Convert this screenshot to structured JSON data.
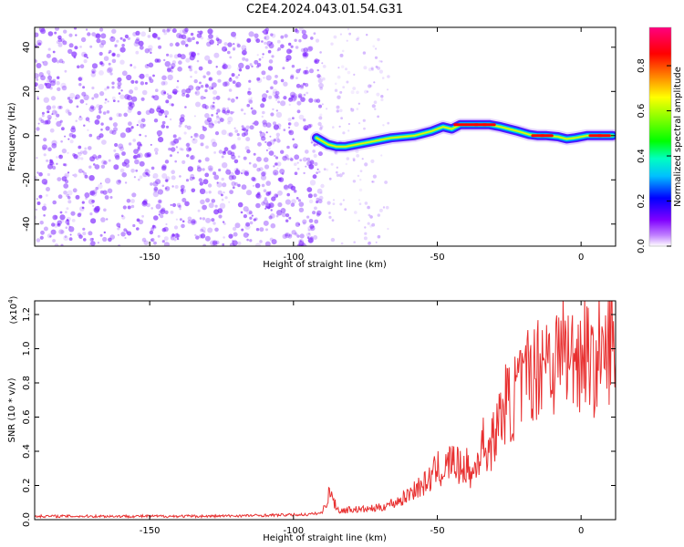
{
  "figure_title": "C2E4.2024.043.01.54.G31",
  "colors": {
    "spectrum_ridge": "#ff0000",
    "scatter_violet": "#7a1fff",
    "snr_line": "#e83030",
    "colorbar": [
      "#ff00ff",
      "#ff0080",
      "#ff0000",
      "#ff8000",
      "#ffff00",
      "#80ff00",
      "#00ff00",
      "#00ffc0",
      "#00c0ff",
      "#0000ff",
      "#8000ff",
      "#ffffff"
    ]
  },
  "chart_data": [
    {
      "type": "heatmap",
      "title": "",
      "xlabel": "Height of straight line (km)",
      "ylabel": "Frequency (Hz)",
      "xlim": [
        -190,
        12
      ],
      "ylim": [
        -50,
        49
      ],
      "x_ticks": [
        -150,
        -100,
        -50,
        0
      ],
      "y_ticks": [
        -40,
        -20,
        0,
        20,
        40
      ],
      "colorbar": {
        "label": "Normalized spectral amplitude",
        "range": [
          0,
          0.97
        ],
        "ticks": [
          "0.0",
          "0.2",
          "0.4",
          "0.6",
          "0.8"
        ]
      },
      "ridge": {
        "description": "narrow-band signal trace",
        "x": [
          -92,
          -88,
          -85,
          -82,
          -78,
          -74,
          -70,
          -66,
          -62,
          -58,
          -55,
          -52,
          -48,
          -45,
          -42,
          -38,
          -35,
          -32,
          -28,
          -25,
          -22,
          -18,
          -15,
          -12,
          -8,
          -5,
          -2,
          2,
          5,
          8,
          11
        ],
        "y": [
          -1,
          -4,
          -5,
          -5,
          -4,
          -3,
          -2,
          -1,
          -0.5,
          0,
          1,
          2,
          4,
          3,
          5,
          5,
          5,
          5,
          4,
          3,
          2,
          0.5,
          0,
          0,
          -0.5,
          -1.5,
          -1,
          0,
          0,
          0,
          0
        ],
        "amplitude": [
          0.35,
          0.45,
          0.5,
          0.55,
          0.6,
          0.65,
          0.7,
          0.7,
          0.72,
          0.75,
          0.75,
          0.8,
          0.8,
          0.85,
          0.9,
          0.97,
          0.97,
          0.95,
          0.85,
          0.8,
          0.75,
          0.8,
          0.9,
          0.92,
          0.8,
          0.75,
          0.8,
          0.85,
          0.9,
          0.92,
          0.85
        ]
      }
    },
    {
      "type": "line",
      "title": "",
      "xlabel": "Height of straight line (km)",
      "ylabel": "SNR (10 * v/v)",
      "y_multiplier": "(x10",
      "y_multiplier_exp": "4",
      "xlim": [
        -190,
        12
      ],
      "ylim": [
        0,
        1.28
      ],
      "x_ticks": [
        -150,
        -100,
        -50,
        0
      ],
      "y_ticks": [
        "0.0",
        "0.2",
        "0.4",
        "0.6",
        "0.8",
        "1.0",
        "1.2"
      ],
      "series": [
        {
          "x": [
            -190,
            -170,
            -150,
            -130,
            -110,
            -95,
            -90,
            -87,
            -86,
            -84,
            -80,
            -75,
            -70,
            -65,
            -62,
            -60,
            -58,
            -55,
            -52,
            -50,
            -48,
            -45,
            -42,
            -40,
            -38,
            -36,
            -34,
            -32,
            -30,
            -28,
            -26,
            -24,
            -22,
            -20,
            -18,
            -16,
            -14,
            -12,
            -10,
            -8,
            -6,
            -4,
            -2,
            0,
            2,
            4,
            6,
            8,
            10,
            12
          ],
          "y": [
            0.02,
            0.02,
            0.02,
            0.02,
            0.025,
            0.03,
            0.04,
            0.18,
            0.1,
            0.05,
            0.06,
            0.06,
            0.07,
            0.1,
            0.12,
            0.15,
            0.18,
            0.2,
            0.25,
            0.3,
            0.28,
            0.35,
            0.3,
            0.32,
            0.25,
            0.35,
            0.45,
            0.4,
            0.5,
            0.6,
            0.7,
            0.65,
            0.8,
            0.75,
            0.9,
            0.85,
            0.95,
            1.0,
            0.9,
            0.95,
            1.05,
            0.9,
            1.0,
            0.95,
            1.05,
            0.85,
            1.0,
            0.9,
            1.05,
            1.0
          ]
        }
      ]
    }
  ]
}
